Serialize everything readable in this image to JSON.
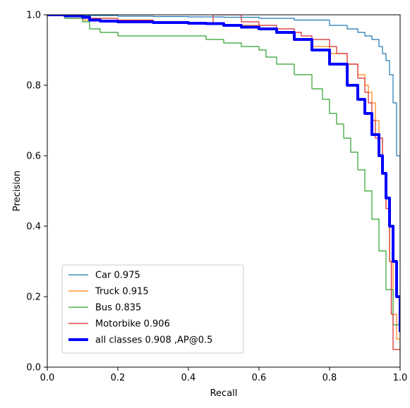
{
  "chart_data": {
    "type": "line",
    "title": "",
    "xlabel": "Recall",
    "ylabel": "Precision",
    "xlim": [
      0.0,
      1.0
    ],
    "ylim": [
      0.0,
      1.0
    ],
    "xticks": [
      "0.0",
      "0.2",
      "0.4",
      "0.6",
      "0.8",
      "1.0"
    ],
    "yticks": [
      "0.0",
      "0.2",
      "0.4",
      "0.6",
      "0.8",
      "1.0"
    ],
    "grid": false,
    "legend_position": "lower-left",
    "series": [
      {
        "name": "Car 0.975",
        "color": "#1f77b4",
        "line_style": "thin",
        "x": [
          0.0,
          0.1,
          0.2,
          0.3,
          0.4,
          0.5,
          0.6,
          0.7,
          0.8,
          0.85,
          0.88,
          0.9,
          0.92,
          0.94,
          0.95,
          0.96,
          0.97,
          0.98,
          0.99,
          1.0
        ],
        "y": [
          1.0,
          0.998,
          0.996,
          0.995,
          0.994,
          0.993,
          0.99,
          0.985,
          0.97,
          0.96,
          0.95,
          0.94,
          0.93,
          0.91,
          0.89,
          0.87,
          0.83,
          0.75,
          0.6,
          0.3
        ]
      },
      {
        "name": "Truck  0.915",
        "color": "#ff7f0e",
        "line_style": "thin",
        "x": [
          0.0,
          0.05,
          0.1,
          0.2,
          0.3,
          0.4,
          0.5,
          0.6,
          0.65,
          0.7,
          0.75,
          0.8,
          0.85,
          0.88,
          0.9,
          0.91,
          0.92,
          0.93,
          0.94,
          0.95,
          0.96,
          0.97,
          0.98,
          0.99,
          1.0
        ],
        "y": [
          1.0,
          0.99,
          0.985,
          0.98,
          0.98,
          0.975,
          0.97,
          0.96,
          0.95,
          0.93,
          0.91,
          0.89,
          0.86,
          0.83,
          0.8,
          0.78,
          0.75,
          0.7,
          0.65,
          0.55,
          0.45,
          0.3,
          0.15,
          0.08,
          0.05
        ]
      },
      {
        "name": "Bus  0.835",
        "color": "#2ca02c",
        "line_style": "thin",
        "x": [
          0.0,
          0.05,
          0.1,
          0.12,
          0.15,
          0.2,
          0.3,
          0.45,
          0.5,
          0.55,
          0.6,
          0.62,
          0.65,
          0.7,
          0.75,
          0.78,
          0.8,
          0.82,
          0.84,
          0.86,
          0.88,
          0.9,
          0.92,
          0.94,
          0.96,
          0.98,
          1.0
        ],
        "y": [
          1.0,
          0.99,
          0.98,
          0.96,
          0.95,
          0.94,
          0.94,
          0.93,
          0.92,
          0.91,
          0.9,
          0.88,
          0.86,
          0.83,
          0.79,
          0.76,
          0.72,
          0.69,
          0.65,
          0.61,
          0.56,
          0.5,
          0.42,
          0.33,
          0.22,
          0.12,
          0.05
        ]
      },
      {
        "name": "Motorbike  0.906",
        "color": "#d62728",
        "line_style": "thin",
        "x": [
          0.0,
          0.1,
          0.2,
          0.3,
          0.4,
          0.46,
          0.47,
          0.55,
          0.6,
          0.65,
          0.7,
          0.72,
          0.75,
          0.8,
          0.82,
          0.85,
          0.88,
          0.9,
          0.91,
          0.92,
          0.93,
          0.95,
          0.96,
          0.97,
          0.975,
          0.98,
          1.0
        ],
        "y": [
          1.0,
          0.99,
          0.985,
          0.98,
          0.975,
          0.975,
          1.0,
          0.98,
          0.97,
          0.96,
          0.95,
          0.94,
          0.93,
          0.91,
          0.89,
          0.86,
          0.82,
          0.78,
          0.75,
          0.7,
          0.65,
          0.55,
          0.45,
          0.3,
          0.15,
          0.05,
          0.0
        ]
      },
      {
        "name": "all classes 0.908 ,AP@0.5",
        "color": "#0000ff",
        "line_style": "thick",
        "x": [
          0.0,
          0.05,
          0.1,
          0.12,
          0.15,
          0.2,
          0.3,
          0.4,
          0.45,
          0.5,
          0.55,
          0.6,
          0.65,
          0.7,
          0.75,
          0.8,
          0.85,
          0.88,
          0.9,
          0.92,
          0.94,
          0.95,
          0.96,
          0.97,
          0.98,
          0.99,
          1.0
        ],
        "y": [
          1.0,
          0.997,
          0.993,
          0.985,
          0.982,
          0.98,
          0.978,
          0.976,
          0.975,
          0.97,
          0.965,
          0.96,
          0.95,
          0.93,
          0.9,
          0.86,
          0.8,
          0.76,
          0.72,
          0.66,
          0.6,
          0.55,
          0.48,
          0.4,
          0.3,
          0.2,
          0.1
        ]
      }
    ]
  }
}
